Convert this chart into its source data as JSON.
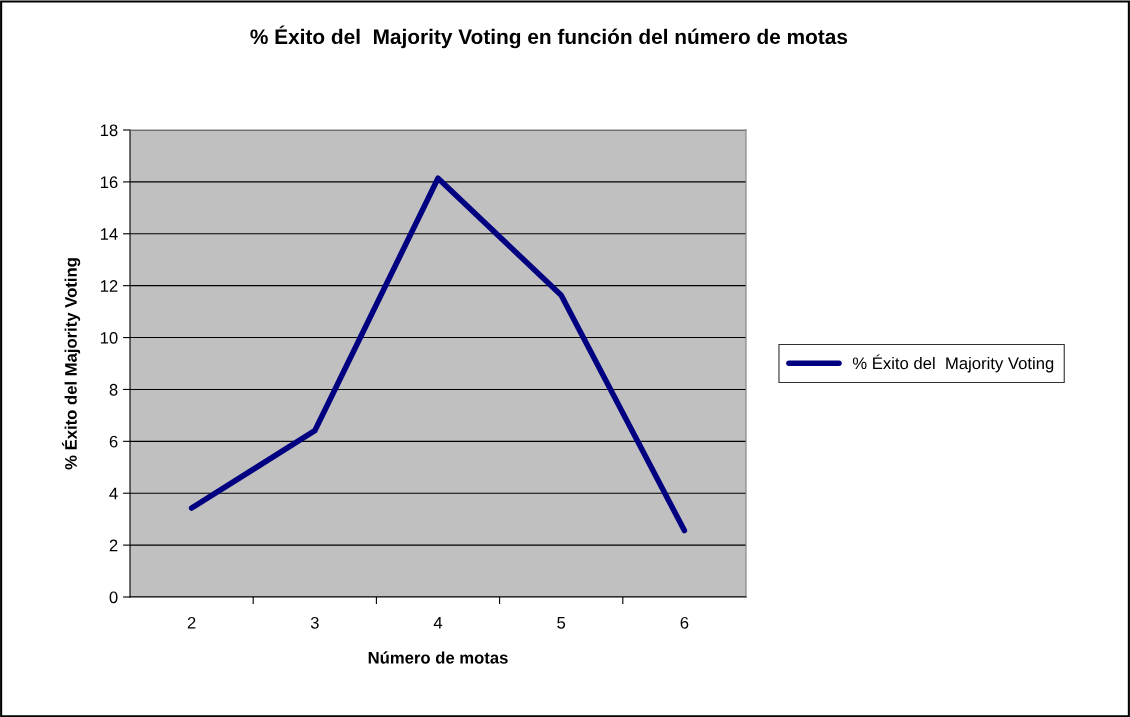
{
  "chart_data": {
    "type": "line",
    "title": "% Éxito del  Majority Voting en función del número de motas",
    "xlabel": "Número de motas",
    "ylabel": "% Éxito del Majority Voting",
    "categories": [
      "2",
      "3",
      "4",
      "5",
      "6"
    ],
    "series": [
      {
        "name": "% Éxito del  Majority Voting",
        "color": "#000080",
        "values": [
          3.43,
          6.41,
          16.14,
          11.63,
          2.56
        ]
      }
    ],
    "ylim": [
      0,
      18
    ],
    "yticks": [
      0,
      2,
      4,
      6,
      8,
      10,
      12,
      14,
      16,
      18
    ],
    "grid": "y",
    "legend": "right",
    "marker": "none",
    "line_style": "solid"
  }
}
